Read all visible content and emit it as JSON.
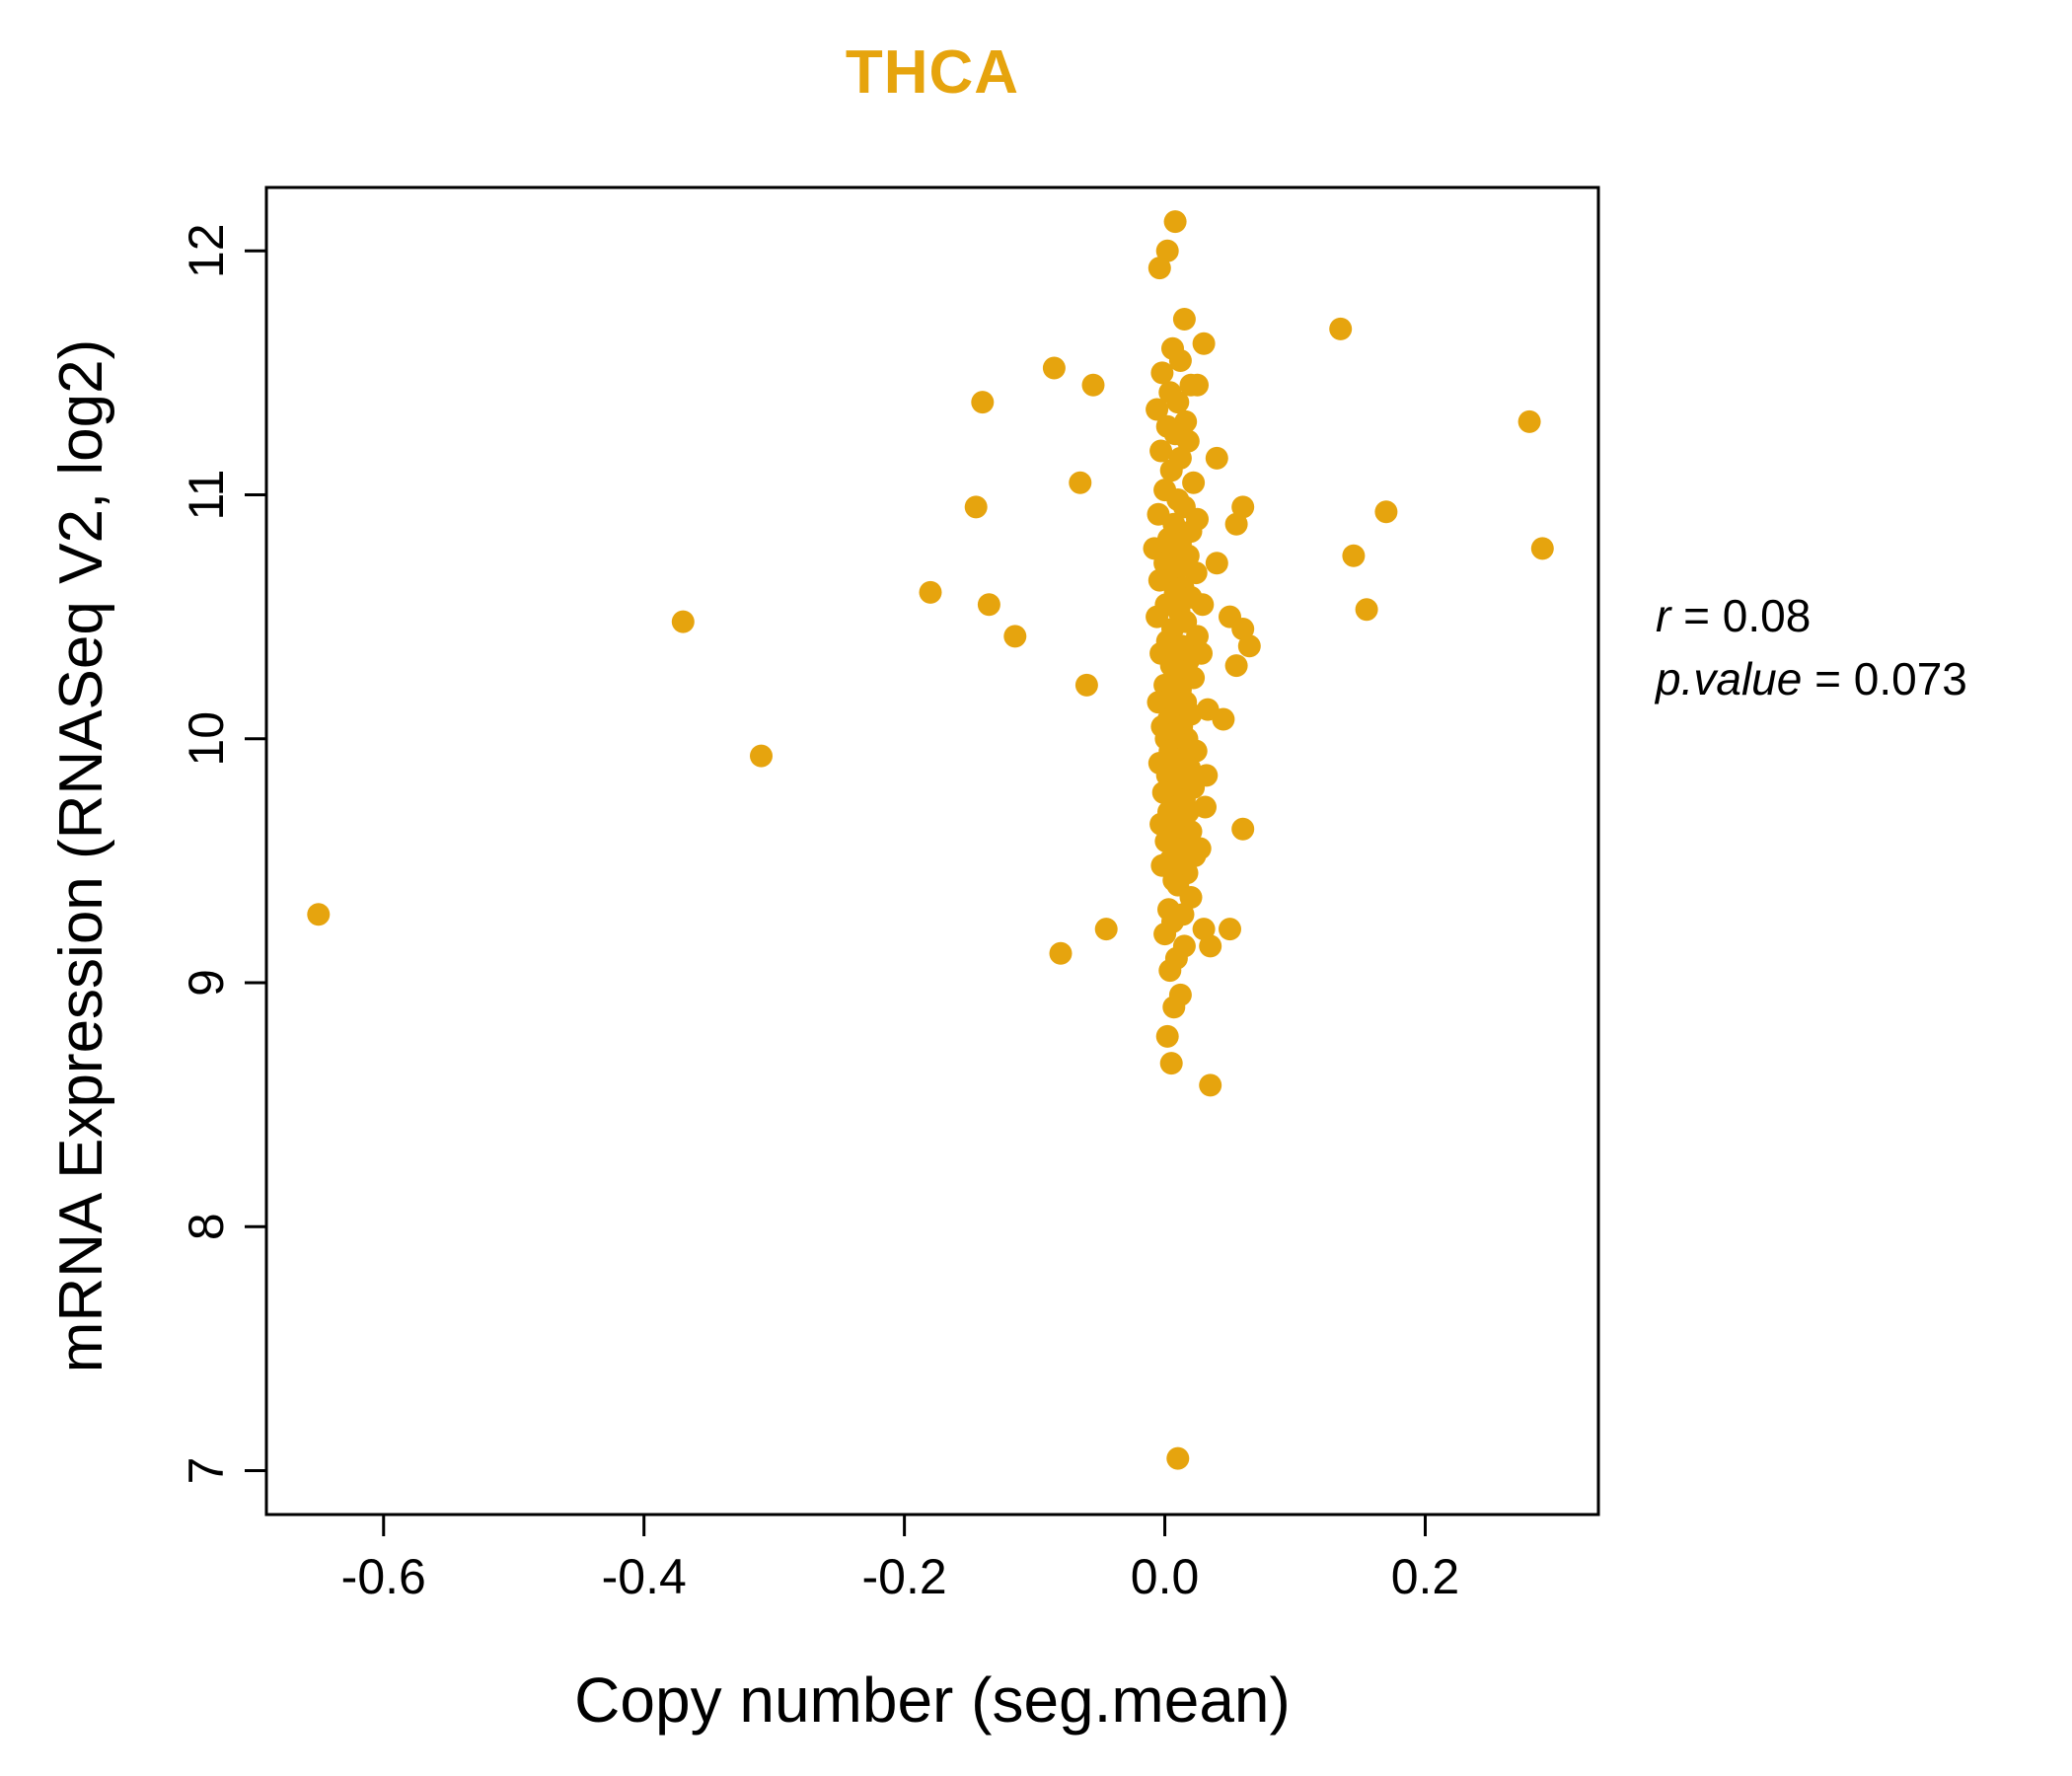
{
  "figure": {
    "title": "THCA",
    "title_color": "#E6A40E",
    "point_color": "#E6A40E"
  },
  "annotation": {
    "r_label": "r",
    "r_value": " = 0.08",
    "p_label": "p.value",
    "p_value": " = 0.073"
  },
  "chart_data": {
    "type": "scatter",
    "title": "THCA",
    "xlabel": "Copy number (seg.mean)",
    "ylabel": "mRNA Expression (RNASeq V2, log2)",
    "xlim": [
      -0.69,
      0.333
    ],
    "ylim": [
      6.82,
      12.26
    ],
    "x_tick_values": [
      -0.6,
      -0.4,
      -0.2,
      0.0,
      0.2
    ],
    "x_tick_labels": [
      "-0.6",
      "-0.4",
      "-0.2",
      "0.0",
      "0.2"
    ],
    "y_tick_values": [
      7,
      8,
      9,
      10,
      11,
      12
    ],
    "y_tick_labels": [
      "7",
      "8",
      "9",
      "10",
      "11",
      "12"
    ],
    "grid": false,
    "legend": "none",
    "correlation_r": 0.08,
    "p_value": 0.073,
    "points": [
      [
        -0.65,
        9.28
      ],
      [
        -0.37,
        10.48
      ],
      [
        -0.31,
        9.93
      ],
      [
        -0.18,
        10.6
      ],
      [
        -0.14,
        11.38
      ],
      [
        -0.145,
        10.95
      ],
      [
        -0.135,
        10.55
      ],
      [
        -0.115,
        10.42
      ],
      [
        -0.085,
        11.52
      ],
      [
        -0.055,
        11.45
      ],
      [
        -0.065,
        11.05
      ],
      [
        -0.06,
        10.22
      ],
      [
        -0.08,
        9.12
      ],
      [
        -0.045,
        9.22
      ],
      [
        0.135,
        11.68
      ],
      [
        0.28,
        11.3
      ],
      [
        0.29,
        10.78
      ],
      [
        0.17,
        10.93
      ],
      [
        0.145,
        10.75
      ],
      [
        0.155,
        10.53
      ],
      [
        0.01,
        7.05
      ],
      [
        0.035,
        8.58
      ],
      [
        0.005,
        8.67
      ],
      [
        0.06,
        10.95
      ],
      [
        0.055,
        10.88
      ],
      [
        0.04,
        11.15
      ],
      [
        0.05,
        10.5
      ],
      [
        0.06,
        10.45
      ],
      [
        0.065,
        10.38
      ],
      [
        0.055,
        10.3
      ],
      [
        0.06,
        9.63
      ],
      [
        0.05,
        9.22
      ],
      [
        0.035,
        9.15
      ],
      [
        0.045,
        10.08
      ],
      [
        0.04,
        10.72
      ],
      [
        0.03,
        11.62
      ],
      [
        0.025,
        11.45
      ],
      [
        0.008,
        12.12
      ],
      [
        0.002,
        12.0
      ],
      [
        -0.004,
        11.93
      ],
      [
        0.015,
        11.72
      ],
      [
        0.006,
        11.6
      ],
      [
        0.012,
        11.55
      ],
      [
        -0.002,
        11.5
      ],
      [
        0.02,
        11.45
      ],
      [
        0.004,
        11.42
      ],
      [
        0.01,
        11.38
      ],
      [
        -0.006,
        11.35
      ],
      [
        0.016,
        11.3
      ],
      [
        0.002,
        11.28
      ],
      [
        0.008,
        11.25
      ],
      [
        0.018,
        11.22
      ],
      [
        -0.003,
        11.18
      ],
      [
        0.012,
        11.15
      ],
      [
        0.005,
        11.1
      ],
      [
        0.022,
        11.05
      ],
      [
        0.0,
        11.02
      ],
      [
        0.01,
        10.98
      ],
      [
        0.015,
        10.95
      ],
      [
        -0.005,
        10.92
      ],
      [
        0.007,
        10.88
      ],
      [
        0.02,
        10.85
      ],
      [
        0.003,
        10.82
      ],
      [
        0.012,
        10.8
      ],
      [
        -0.008,
        10.78
      ],
      [
        0.006,
        10.75
      ],
      [
        0.018,
        10.75
      ],
      [
        0.0,
        10.72
      ],
      [
        0.01,
        10.7
      ],
      [
        0.024,
        10.68
      ],
      [
        0.004,
        10.65
      ],
      [
        -0.004,
        10.65
      ],
      [
        0.014,
        10.62
      ],
      [
        0.008,
        10.6
      ],
      [
        0.02,
        10.58
      ],
      [
        0.001,
        10.55
      ],
      [
        0.011,
        10.52
      ],
      [
        -0.006,
        10.5
      ],
      [
        0.016,
        10.48
      ],
      [
        0.006,
        10.45
      ],
      [
        0.025,
        10.42
      ],
      [
        0.002,
        10.4
      ],
      [
        0.013,
        10.38
      ],
      [
        0.008,
        10.35
      ],
      [
        -0.003,
        10.35
      ],
      [
        0.018,
        10.32
      ],
      [
        0.005,
        10.3
      ],
      [
        0.01,
        10.28
      ],
      [
        0.022,
        10.25
      ],
      [
        0.0,
        10.22
      ],
      [
        0.012,
        10.2
      ],
      [
        0.006,
        10.18
      ],
      [
        0.016,
        10.15
      ],
      [
        -0.005,
        10.15
      ],
      [
        0.009,
        10.12
      ],
      [
        0.02,
        10.1
      ],
      [
        0.003,
        10.08
      ],
      [
        0.013,
        10.05
      ],
      [
        -0.002,
        10.05
      ],
      [
        0.007,
        10.02
      ],
      [
        0.017,
        10.0
      ],
      [
        0.001,
        10.0
      ],
      [
        0.011,
        9.98
      ],
      [
        0.024,
        9.95
      ],
      [
        0.004,
        9.95
      ],
      [
        0.014,
        9.92
      ],
      [
        -0.004,
        9.9
      ],
      [
        0.008,
        9.9
      ],
      [
        0.019,
        9.88
      ],
      [
        0.002,
        9.85
      ],
      [
        0.012,
        9.82
      ],
      [
        0.006,
        9.8
      ],
      [
        0.022,
        9.8
      ],
      [
        -0.001,
        9.78
      ],
      [
        0.015,
        9.75
      ],
      [
        0.009,
        9.72
      ],
      [
        0.003,
        9.7
      ],
      [
        0.018,
        9.7
      ],
      [
        0.007,
        9.68
      ],
      [
        0.013,
        9.65
      ],
      [
        -0.003,
        9.65
      ],
      [
        0.02,
        9.62
      ],
      [
        0.005,
        9.6
      ],
      [
        0.011,
        9.6
      ],
      [
        0.001,
        9.58
      ],
      [
        0.016,
        9.55
      ],
      [
        0.008,
        9.55
      ],
      [
        0.023,
        9.52
      ],
      [
        0.004,
        9.5
      ],
      [
        0.012,
        9.5
      ],
      [
        -0.002,
        9.48
      ],
      [
        0.017,
        9.45
      ],
      [
        0.007,
        9.42
      ],
      [
        0.01,
        9.4
      ],
      [
        0.02,
        9.35
      ],
      [
        0.003,
        9.3
      ],
      [
        0.014,
        9.28
      ],
      [
        0.006,
        9.25
      ],
      [
        0.0,
        9.2
      ],
      [
        0.015,
        9.15
      ],
      [
        0.009,
        9.1
      ],
      [
        0.004,
        9.05
      ],
      [
        0.012,
        8.95
      ],
      [
        0.007,
        8.9
      ],
      [
        0.002,
        8.78
      ],
      [
        0.03,
        9.22
      ],
      [
        0.025,
        10.9
      ],
      [
        0.028,
        10.35
      ],
      [
        0.032,
        9.85
      ],
      [
        0.027,
        9.55
      ],
      [
        0.033,
        10.12
      ],
      [
        0.029,
        10.55
      ],
      [
        0.031,
        9.72
      ]
    ]
  }
}
